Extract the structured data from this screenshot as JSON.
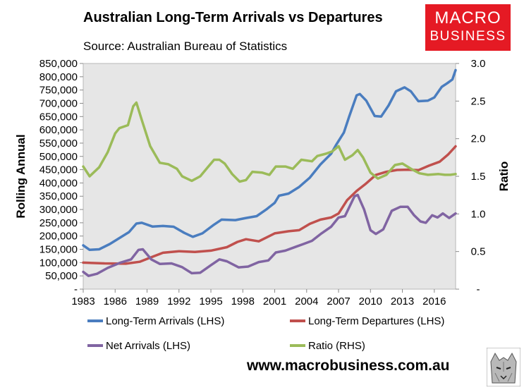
{
  "header": {
    "title": "Australian Long-Term Arrivals vs Departures",
    "subtitle": "Source: Australian Bureau of Statistics"
  },
  "logo": {
    "line1": "MACRO",
    "line2": "BUSINESS",
    "bg": "#e51a24"
  },
  "footer": {
    "url": "www.macrobusiness.com.au"
  },
  "chart_data": {
    "type": "line",
    "title": "Australian Long-Term Arrivals vs Departures",
    "ylabel": "Rolling Annual",
    "y2label": "Ratio",
    "xlim": [
      1983,
      2018
    ],
    "ylim": [
      0,
      850000
    ],
    "y2lim": [
      0,
      3.0
    ],
    "y_ticks": [
      "-",
      "50,000",
      "100,000",
      "150,000",
      "200,000",
      "250,000",
      "300,000",
      "350,000",
      "400,000",
      "450,000",
      "500,000",
      "550,000",
      "600,000",
      "650,000",
      "700,000",
      "750,000",
      "800,000",
      "850,000"
    ],
    "y2_ticks": [
      "-",
      "0.5",
      "1.0",
      "1.5",
      "2.0",
      "2.5",
      "3.0"
    ],
    "x_ticks": [
      "1983",
      "1986",
      "1989",
      "1992",
      "1995",
      "1998",
      "2001",
      "2004",
      "2007",
      "2010",
      "2013",
      "2016"
    ],
    "legend": "bottom",
    "series": [
      {
        "name": "Long-Term Arrivals (LHS)",
        "axis": "left",
        "color": "#4a7dbf",
        "points": [
          [
            1983,
            165000
          ],
          [
            1983.6,
            148000
          ],
          [
            1984.5,
            150000
          ],
          [
            1985.5,
            170000
          ],
          [
            1986.5,
            195000
          ],
          [
            1987.3,
            215000
          ],
          [
            1988,
            247000
          ],
          [
            1988.5,
            250000
          ],
          [
            1989.5,
            236000
          ],
          [
            1990.5,
            238000
          ],
          [
            1991.5,
            235000
          ],
          [
            1992.5,
            212000
          ],
          [
            1993.3,
            197000
          ],
          [
            1994.2,
            210000
          ],
          [
            1995.2,
            240000
          ],
          [
            1996,
            262000
          ],
          [
            1997.3,
            260000
          ],
          [
            1998.3,
            268000
          ],
          [
            1999.3,
            275000
          ],
          [
            2000.2,
            300000
          ],
          [
            2001,
            325000
          ],
          [
            2001.4,
            352000
          ],
          [
            2002.3,
            360000
          ],
          [
            2003.3,
            385000
          ],
          [
            2004.3,
            420000
          ],
          [
            2005.3,
            470000
          ],
          [
            2006.3,
            510000
          ],
          [
            2006.8,
            545000
          ],
          [
            2007.5,
            590000
          ],
          [
            2008,
            650000
          ],
          [
            2008.7,
            730000
          ],
          [
            2009,
            735000
          ],
          [
            2009.6,
            710000
          ],
          [
            2010.4,
            652000
          ],
          [
            2011,
            650000
          ],
          [
            2011.7,
            692000
          ],
          [
            2012.4,
            745000
          ],
          [
            2013.2,
            760000
          ],
          [
            2013.8,
            745000
          ],
          [
            2014.5,
            708000
          ],
          [
            2015.4,
            710000
          ],
          [
            2016,
            722000
          ],
          [
            2016.7,
            762000
          ],
          [
            2017.2,
            775000
          ],
          [
            2017.7,
            790000
          ],
          [
            2018,
            825000
          ]
        ]
      },
      {
        "name": "Long-Term Departures (LHS)",
        "axis": "left",
        "color": "#c0504d",
        "points": [
          [
            1983,
            100000
          ],
          [
            1985,
            97000
          ],
          [
            1987,
            96000
          ],
          [
            1988.3,
            103000
          ],
          [
            1989.4,
            120000
          ],
          [
            1990.5,
            137000
          ],
          [
            1992,
            143000
          ],
          [
            1993.5,
            140000
          ],
          [
            1995,
            145000
          ],
          [
            1996.5,
            158000
          ],
          [
            1997.5,
            178000
          ],
          [
            1998.3,
            188000
          ],
          [
            1999.5,
            180000
          ],
          [
            2001,
            210000
          ],
          [
            2002.3,
            218000
          ],
          [
            2003.3,
            222000
          ],
          [
            2004.3,
            246000
          ],
          [
            2005.3,
            262000
          ],
          [
            2006.3,
            270000
          ],
          [
            2007,
            285000
          ],
          [
            2007.8,
            335000
          ],
          [
            2008.7,
            370000
          ],
          [
            2009.5,
            395000
          ],
          [
            2010.5,
            430000
          ],
          [
            2011.5,
            442000
          ],
          [
            2012.5,
            449000
          ],
          [
            2013.5,
            450000
          ],
          [
            2014.5,
            448000
          ],
          [
            2015.5,
            465000
          ],
          [
            2016.5,
            480000
          ],
          [
            2017.3,
            507000
          ],
          [
            2018,
            538000
          ]
        ]
      },
      {
        "name": "Net Arrivals (LHS)",
        "axis": "left",
        "color": "#8064a2",
        "points": [
          [
            1983,
            65000
          ],
          [
            1983.5,
            50000
          ],
          [
            1984.3,
            58000
          ],
          [
            1985.3,
            80000
          ],
          [
            1986.5,
            100000
          ],
          [
            1987.5,
            112000
          ],
          [
            1988.2,
            148000
          ],
          [
            1988.6,
            150000
          ],
          [
            1989.4,
            112000
          ],
          [
            1990.2,
            95000
          ],
          [
            1991.3,
            97000
          ],
          [
            1992.3,
            83000
          ],
          [
            1993.2,
            60000
          ],
          [
            1994,
            62000
          ],
          [
            1995,
            90000
          ],
          [
            1995.8,
            112000
          ],
          [
            1996.5,
            105000
          ],
          [
            1997.6,
            82000
          ],
          [
            1998.5,
            85000
          ],
          [
            1999.5,
            102000
          ],
          [
            2000.4,
            108000
          ],
          [
            2001.1,
            138000
          ],
          [
            2002,
            145000
          ],
          [
            2003,
            160000
          ],
          [
            2003.7,
            170000
          ],
          [
            2004.5,
            182000
          ],
          [
            2005.4,
            210000
          ],
          [
            2006.3,
            235000
          ],
          [
            2007,
            270000
          ],
          [
            2007.6,
            275000
          ],
          [
            2008.5,
            350000
          ],
          [
            2008.8,
            355000
          ],
          [
            2009.4,
            300000
          ],
          [
            2010,
            222000
          ],
          [
            2010.5,
            208000
          ],
          [
            2011.2,
            225000
          ],
          [
            2012,
            295000
          ],
          [
            2012.8,
            310000
          ],
          [
            2013.5,
            310000
          ],
          [
            2014.1,
            278000
          ],
          [
            2014.7,
            255000
          ],
          [
            2015.2,
            250000
          ],
          [
            2015.8,
            278000
          ],
          [
            2016.3,
            270000
          ],
          [
            2016.8,
            285000
          ],
          [
            2017.4,
            268000
          ],
          [
            2018,
            285000
          ]
        ]
      },
      {
        "name": "Ratio (RHS)",
        "axis": "right",
        "color": "#9bbb59",
        "points": [
          [
            1983,
            1.63
          ],
          [
            1983.6,
            1.5
          ],
          [
            1984.5,
            1.62
          ],
          [
            1985.3,
            1.82
          ],
          [
            1986,
            2.07
          ],
          [
            1986.4,
            2.14
          ],
          [
            1987.2,
            2.18
          ],
          [
            1987.7,
            2.43
          ],
          [
            1988,
            2.48
          ],
          [
            1988.5,
            2.25
          ],
          [
            1989.3,
            1.9
          ],
          [
            1990.2,
            1.68
          ],
          [
            1991,
            1.66
          ],
          [
            1991.8,
            1.6
          ],
          [
            1992.3,
            1.5
          ],
          [
            1993.2,
            1.44
          ],
          [
            1994,
            1.5
          ],
          [
            1994.7,
            1.62
          ],
          [
            1995.3,
            1.72
          ],
          [
            1995.8,
            1.72
          ],
          [
            1996.3,
            1.67
          ],
          [
            1997,
            1.53
          ],
          [
            1997.7,
            1.43
          ],
          [
            1998.3,
            1.45
          ],
          [
            1998.9,
            1.56
          ],
          [
            1999.8,
            1.55
          ],
          [
            2000.5,
            1.52
          ],
          [
            2001.1,
            1.63
          ],
          [
            2002,
            1.63
          ],
          [
            2002.7,
            1.6
          ],
          [
            2003.5,
            1.72
          ],
          [
            2004.5,
            1.7
          ],
          [
            2005,
            1.77
          ],
          [
            2005.8,
            1.8
          ],
          [
            2006.4,
            1.83
          ],
          [
            2007,
            1.9
          ],
          [
            2007.6,
            1.72
          ],
          [
            2008.3,
            1.78
          ],
          [
            2008.8,
            1.85
          ],
          [
            2009.3,
            1.75
          ],
          [
            2010,
            1.55
          ],
          [
            2010.7,
            1.47
          ],
          [
            2011.5,
            1.52
          ],
          [
            2012.3,
            1.65
          ],
          [
            2013,
            1.67
          ],
          [
            2013.8,
            1.6
          ],
          [
            2014.6,
            1.54
          ],
          [
            2015.4,
            1.52
          ],
          [
            2016.4,
            1.53
          ],
          [
            2017,
            1.52
          ],
          [
            2017.5,
            1.52
          ],
          [
            2018,
            1.53
          ]
        ]
      }
    ]
  }
}
